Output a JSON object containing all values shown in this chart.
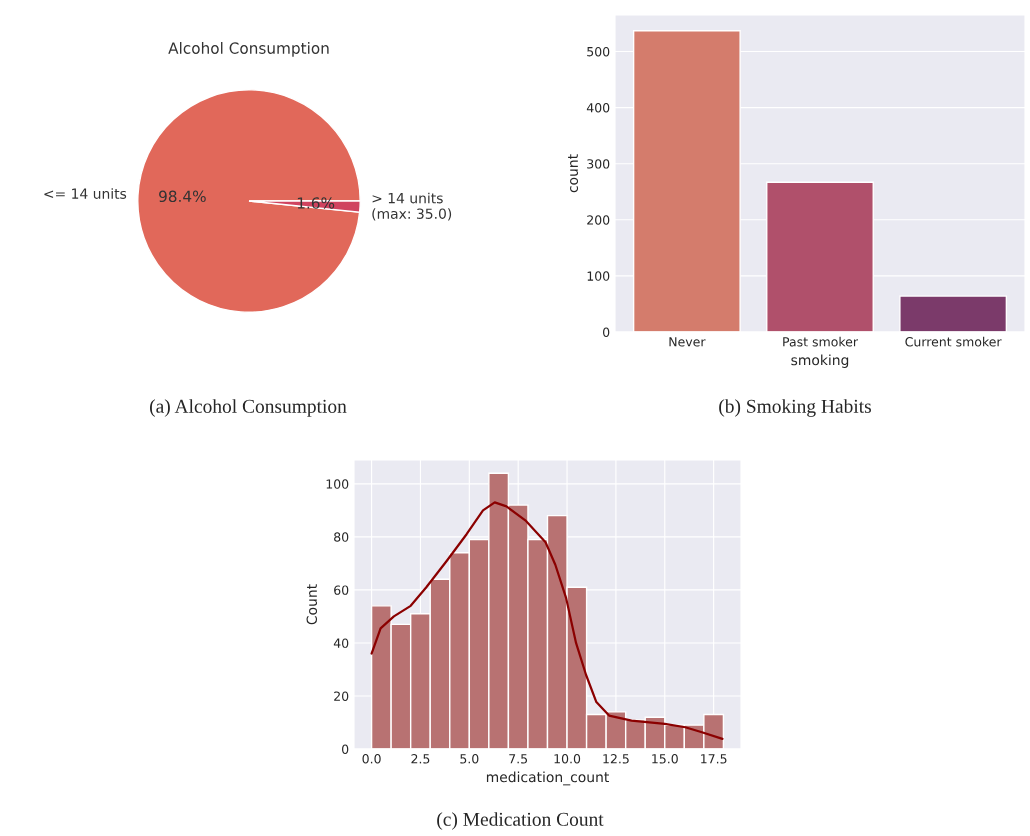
{
  "chart_data": [
    {
      "type": "pie",
      "title": "Alcohol Consumption",
      "categories": [
        "<= 14 units",
        "> 14 units\n(max: 35.0)"
      ],
      "values": [
        98.4,
        1.6
      ],
      "value_labels": [
        "98.4%",
        "1.6%"
      ],
      "colors": [
        "#e1685a",
        "#d0435f"
      ],
      "annotations": [
        "(a) Alcohol Consumption"
      ]
    },
    {
      "type": "bar",
      "categories": [
        "Never",
        "Past smoker",
        "Current smoker"
      ],
      "values": [
        537,
        267,
        64
      ],
      "colors": [
        "#d47c6c",
        "#b0506b",
        "#7b3a6a"
      ],
      "xlabel": "smoking",
      "ylabel": "count",
      "ylim": [
        0,
        565
      ],
      "yticks": [
        0,
        100,
        200,
        300,
        400,
        500
      ],
      "grid": "y",
      "annotations": [
        "(b) Smoking Habits"
      ]
    },
    {
      "type": "histogram",
      "bins": [
        0,
        1,
        2,
        3,
        4,
        5,
        6,
        7,
        8,
        9,
        10,
        11,
        12,
        13,
        14,
        15,
        16,
        17,
        18
      ],
      "values": [
        54,
        47,
        51,
        64,
        74,
        79,
        104,
        92,
        79,
        88,
        61,
        13,
        14,
        11,
        12,
        9,
        9,
        13
      ],
      "color": "#b87272",
      "xlabel": "medication_count",
      "ylabel": "Count",
      "xlim": [
        -0.9,
        18.9
      ],
      "xticks": [
        {
          "value": 0,
          "label": "0.0"
        },
        {
          "value": 2.5,
          "label": "2.5"
        },
        {
          "value": 5,
          "label": "5.0"
        },
        {
          "value": 7.5,
          "label": "7.5"
        },
        {
          "value": 10,
          "label": "10.0"
        },
        {
          "value": 12.5,
          "label": "12.5"
        },
        {
          "value": 15,
          "label": "15.0"
        },
        {
          "value": 17.5,
          "label": "17.5"
        }
      ],
      "ylim": [
        0,
        109
      ],
      "yticks": [
        0,
        20,
        40,
        60,
        80,
        100
      ],
      "grid": true,
      "series": [
        {
          "type": "line",
          "color": "#8b0000",
          "x": [
            0,
            0.46,
            1.14,
            2.0,
            2.8,
            3.85,
            4.86,
            5.7,
            6.3,
            6.9,
            7.9,
            8.9,
            9.4,
            9.95,
            10.46,
            10.97,
            11.5,
            12.15,
            13.3,
            15.0,
            16.05,
            16.9,
            17.95
          ],
          "values": [
            36,
            45.5,
            50,
            54,
            61,
            71,
            81,
            90,
            93,
            91.5,
            86,
            78,
            69.5,
            57,
            40,
            28,
            17.7,
            12.6,
            10.7,
            9.5,
            8.2,
            6.3,
            3.8
          ]
        }
      ],
      "annotations": [
        "(c) Medication Count"
      ]
    }
  ]
}
